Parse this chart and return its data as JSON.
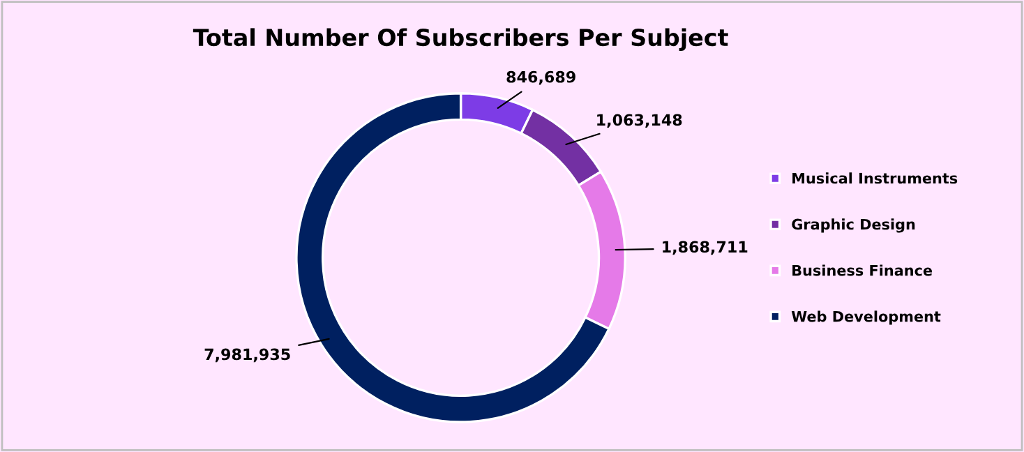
{
  "chart_data": {
    "type": "donut",
    "title": "Total Number Of Subscribers Per Subject",
    "categories": [
      "Musical Instruments",
      "Graphic Design",
      "Business Finance",
      "Web Development"
    ],
    "values": [
      846689,
      1063148,
      1868711,
      7981935
    ],
    "colors": [
      "#7d3ce6",
      "#7330a3",
      "#e57ae8",
      "#002060"
    ],
    "value_labels": [
      "846,689",
      "1,063,148",
      "1,868,711",
      "7,981,935"
    ],
    "legend": "right"
  }
}
